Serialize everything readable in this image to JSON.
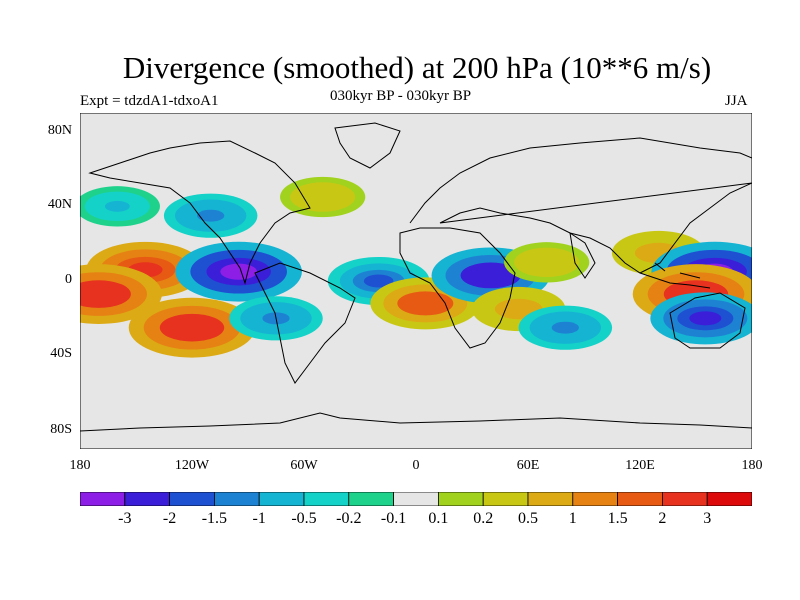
{
  "title": "Divergence (smoothed) at 200 hPa (10**6 m/s)",
  "experiment": "Expt = tdzdA1-tdxoA1",
  "subtitle": "030kyr BP - 030kyr BP",
  "season": "JJA",
  "lat_labels": [
    "80N",
    "40N",
    "0",
    "40S",
    "80S"
  ],
  "lon_labels": [
    "180",
    "120W",
    "60W",
    "0",
    "60E",
    "120E",
    "180"
  ],
  "colorbar": {
    "labels": [
      "-3",
      "-2",
      "-1.5",
      "-1",
      "-0.5",
      "-0.2",
      "-0.1",
      "0.1",
      "0.2",
      "0.5",
      "1",
      "1.5",
      "2",
      "3"
    ],
    "colors": [
      "#8c1ee6",
      "#3a1ed8",
      "#1e50d2",
      "#1e82d2",
      "#14b4d2",
      "#14d2c8",
      "#1ed28c",
      "#e6e6e6",
      "#a0d21e",
      "#c8c814",
      "#dcaa14",
      "#e68214",
      "#e65a14",
      "#e6321e",
      "#dc0a0a"
    ]
  },
  "map_data": {
    "lat_range": [
      -90,
      90
    ],
    "lon_range": [
      -180,
      180
    ],
    "anomalies": [
      {
        "lon": -145,
        "lat": 6,
        "value": 2.5
      },
      {
        "lon": -95,
        "lat": 5,
        "value": -3
      },
      {
        "lon": -20,
        "lat": 0,
        "value": -1.5
      },
      {
        "lon": 5,
        "lat": -12,
        "value": 2
      },
      {
        "lon": 40,
        "lat": 3,
        "value": -2.5
      },
      {
        "lon": 55,
        "lat": -15,
        "value": 1
      },
      {
        "lon": 70,
        "lat": 10,
        "value": 0.5
      },
      {
        "lon": 130,
        "lat": 15,
        "value": 1
      },
      {
        "lon": 160,
        "lat": 5,
        "value": -3
      },
      {
        "lon": 150,
        "lat": -7,
        "value": 3
      },
      {
        "lon": 155,
        "lat": -20,
        "value": -2
      },
      {
        "lon": -170,
        "lat": -7,
        "value": 3
      },
      {
        "lon": -120,
        "lat": -25,
        "value": 3
      },
      {
        "lon": -75,
        "lat": -20,
        "value": -1
      },
      {
        "lon": -50,
        "lat": 45,
        "value": 0.5
      },
      {
        "lon": -110,
        "lat": 35,
        "value": -1
      },
      {
        "lon": 80,
        "lat": -25,
        "value": -1
      },
      {
        "lon": -160,
        "lat": 40,
        "value": -0.5
      }
    ]
  }
}
